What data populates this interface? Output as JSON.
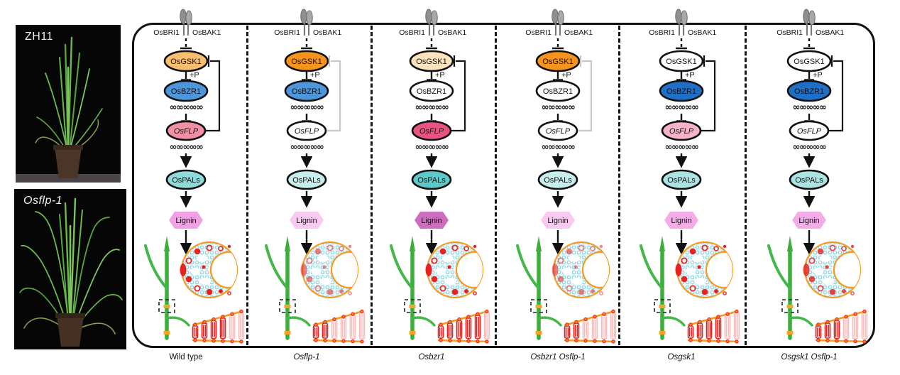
{
  "photos": [
    {
      "label": "ZH11",
      "italic": false
    },
    {
      "label": "Osflp-1",
      "italic": true
    }
  ],
  "shared": {
    "receptor_left": "OsBRI1",
    "receptor_right": "OsBAK1",
    "phospho_label": "+P",
    "gsk1": "OsGSK1",
    "bzr1": "OsBZR1",
    "flp": "OsFLP",
    "pals": "OsPALs",
    "lignin": "Lignin",
    "dna_glyph": "∞∞∞∞∞"
  },
  "panels": [
    {
      "genotype": "Wild type",
      "genotype_italic": false,
      "lignin_level": "medium",
      "colors": {
        "gsk1": "#F9BE70",
        "bzr1": "#4E96D9",
        "flp": "#F18FA5",
        "pals": "#90DADA",
        "lignin": "#F2A0E4",
        "feedback": "#161616"
      }
    },
    {
      "genotype": "Osflp-1",
      "genotype_italic": true,
      "lignin_level": "low",
      "colors": {
        "gsk1": "#F7941E",
        "bzr1": "#4E96D9",
        "flp": "#FFFFFF",
        "pals": "#C9EDED",
        "lignin": "#F8C9F1",
        "feedback": "#C8C8C8"
      }
    },
    {
      "genotype": "Osbzr1",
      "genotype_italic": true,
      "lignin_level": "high",
      "colors": {
        "gsk1": "#FBE3C0",
        "bzr1": "#FFFFFF",
        "flp": "#E85380",
        "pals": "#5FC8C8",
        "lignin": "#CE6CBE",
        "feedback": "#161616"
      }
    },
    {
      "genotype": "Osbzr1 Osflp-1",
      "genotype_italic": true,
      "lignin_level": "low",
      "colors": {
        "gsk1": "#F7941E",
        "bzr1": "#FFFFFF",
        "flp": "#FFFFFF",
        "pals": "#C9EDED",
        "lignin": "#F8C9F1",
        "feedback": "#C8C8C8"
      }
    },
    {
      "genotype": "Osgsk1",
      "genotype_italic": true,
      "lignin_level": "medium",
      "colors": {
        "gsk1": "#FFFFFF",
        "bzr1": "#1F6FC6",
        "flp": "#F5B3C8",
        "pals": "#AEE3E3",
        "lignin": "#F5ADEA",
        "feedback": "#161616"
      }
    },
    {
      "genotype": "Osgsk1 Osflp-1",
      "genotype_italic": true,
      "lignin_level": "medium-low",
      "colors": {
        "gsk1": "#FFFFFF",
        "bzr1": "#1F6FC6",
        "flp": "#FFFFFF",
        "pals": "#AEE3E3",
        "lignin": "#F5ADEA",
        "feedback": "#161616"
      }
    }
  ]
}
